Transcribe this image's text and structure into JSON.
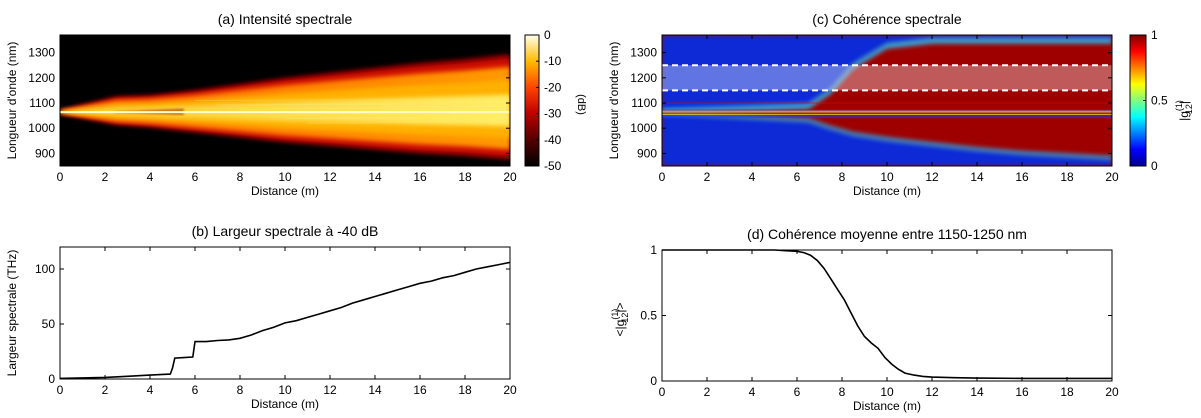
{
  "chart_data": [
    {
      "id": "a",
      "type": "heatmap",
      "title": "(a) Intensité spectrale",
      "xlabel": "Distance (m)",
      "ylabel": "Longueur d'onde (nm)",
      "xlim": [
        0,
        20
      ],
      "ylim": [
        850,
        1370
      ],
      "xticks": [
        "0",
        "2",
        "4",
        "6",
        "8",
        "10",
        "12",
        "14",
        "16",
        "18",
        "20"
      ],
      "yticks": [
        "900",
        "1000",
        "1100",
        "1200",
        "1300"
      ],
      "colorbar": {
        "label": "(dB)",
        "range": [
          -50,
          0
        ],
        "ticks": [
          "0",
          "-10",
          "-20",
          "-30",
          "-40",
          "-50"
        ],
        "colormap": "hot"
      },
      "center_wavelength_nm": 1064,
      "envelope": {
        "distance_m": [
          0,
          2.5,
          4,
          6,
          8,
          10,
          12,
          14,
          16,
          18,
          20
        ],
        "upper_edge_nm": [
          1070,
          1125,
          1130,
          1150,
          1175,
          1200,
          1220,
          1240,
          1260,
          1275,
          1295
        ],
        "lower_edge_nm": [
          1060,
          1015,
          1005,
          985,
          965,
          945,
          930,
          915,
          900,
          890,
          875
        ]
      }
    },
    {
      "id": "c",
      "type": "heatmap",
      "title": "(c) Cohérence spectrale",
      "xlabel": "Distance (m)",
      "ylabel": "Longueur d'onde (nm)",
      "xlim": [
        0,
        20
      ],
      "ylim": [
        850,
        1370
      ],
      "xticks": [
        "0",
        "2",
        "4",
        "6",
        "8",
        "10",
        "12",
        "14",
        "16",
        "18",
        "20"
      ],
      "yticks": [
        "900",
        "1000",
        "1100",
        "1200",
        "1300"
      ],
      "colorbar": {
        "label": "|g",
        "label_sup": "(1)",
        "label_sub": "12",
        "label_end": "|",
        "range": [
          0,
          1
        ],
        "ticks": [
          "1",
          "0.5",
          "0"
        ],
        "colormap": "jet"
      },
      "highlight_band_nm": [
        1150,
        1250
      ],
      "coherence_loss_onset_m": {
        "distance_m": [
          0,
          6.5,
          7.5,
          8.5,
          10,
          12,
          14,
          16,
          18,
          20
        ],
        "upper_edge_nm": [
          1070,
          1090,
          1150,
          1250,
          1330,
          1350,
          1350,
          1350,
          1350,
          1350
        ],
        "lower_edge_nm": [
          1060,
          1030,
          1000,
          975,
          955,
          935,
          915,
          900,
          890,
          880
        ]
      }
    },
    {
      "id": "b",
      "type": "line",
      "title": "(b) Largeur spectrale à -40 dB",
      "xlabel": "Distance (m)",
      "ylabel": "Largeur spectrale (THz)",
      "xlim": [
        0,
        20
      ],
      "ylim": [
        0,
        120
      ],
      "xticks": [
        "0",
        "2",
        "4",
        "6",
        "8",
        "10",
        "12",
        "14",
        "16",
        "18",
        "20"
      ],
      "yticks": [
        "0",
        "50",
        "100"
      ],
      "series": [
        {
          "x": [
            0,
            1,
            2,
            3,
            4,
            4.9,
            5.0,
            5.1,
            5.5,
            5.9,
            6.0,
            6.5,
            7,
            7.5,
            8,
            8.5,
            9,
            9.5,
            10,
            10.5,
            11,
            11.5,
            12,
            12.5,
            13,
            13.5,
            14,
            14.5,
            15,
            15.5,
            16,
            16.5,
            17,
            17.5,
            18,
            18.5,
            19,
            19.5,
            20
          ],
          "y": [
            0.5,
            1,
            1.5,
            2.5,
            3.5,
            4.5,
            10,
            19,
            19.5,
            20,
            34,
            34,
            35,
            35.5,
            37,
            40,
            44,
            47,
            51,
            53,
            56,
            59,
            62,
            65,
            69,
            72,
            75,
            78,
            81,
            84,
            87,
            89,
            92,
            94,
            97,
            100,
            102,
            104,
            106
          ]
        }
      ]
    },
    {
      "id": "d",
      "type": "line",
      "title": "(d) Cohérence moyenne entre 1150-1250 nm",
      "xlabel": "Distance (m)",
      "ylabel": "<|g",
      "ylabel_sup": "(1)",
      "ylabel_sub": "12",
      "ylabel_end": "|>",
      "xlim": [
        0,
        20
      ],
      "ylim": [
        0,
        1
      ],
      "xticks": [
        "0",
        "2",
        "4",
        "6",
        "8",
        "10",
        "12",
        "14",
        "16",
        "18",
        "20"
      ],
      "yticks": [
        "0",
        "0.5",
        "1"
      ],
      "series": [
        {
          "x": [
            0,
            2,
            4,
            5,
            5.5,
            6,
            6.3,
            6.6,
            6.9,
            7.2,
            7.5,
            7.8,
            8.1,
            8.4,
            8.7,
            9.0,
            9.3,
            9.6,
            9.9,
            10.2,
            10.5,
            10.8,
            11.2,
            11.6,
            12,
            13,
            14,
            16,
            18,
            20
          ],
          "y": [
            1,
            1,
            1,
            1,
            0.995,
            0.99,
            0.98,
            0.96,
            0.92,
            0.86,
            0.78,
            0.7,
            0.62,
            0.52,
            0.42,
            0.34,
            0.29,
            0.25,
            0.18,
            0.13,
            0.09,
            0.06,
            0.045,
            0.035,
            0.03,
            0.025,
            0.022,
            0.02,
            0.02,
            0.02
          ]
        }
      ]
    }
  ]
}
